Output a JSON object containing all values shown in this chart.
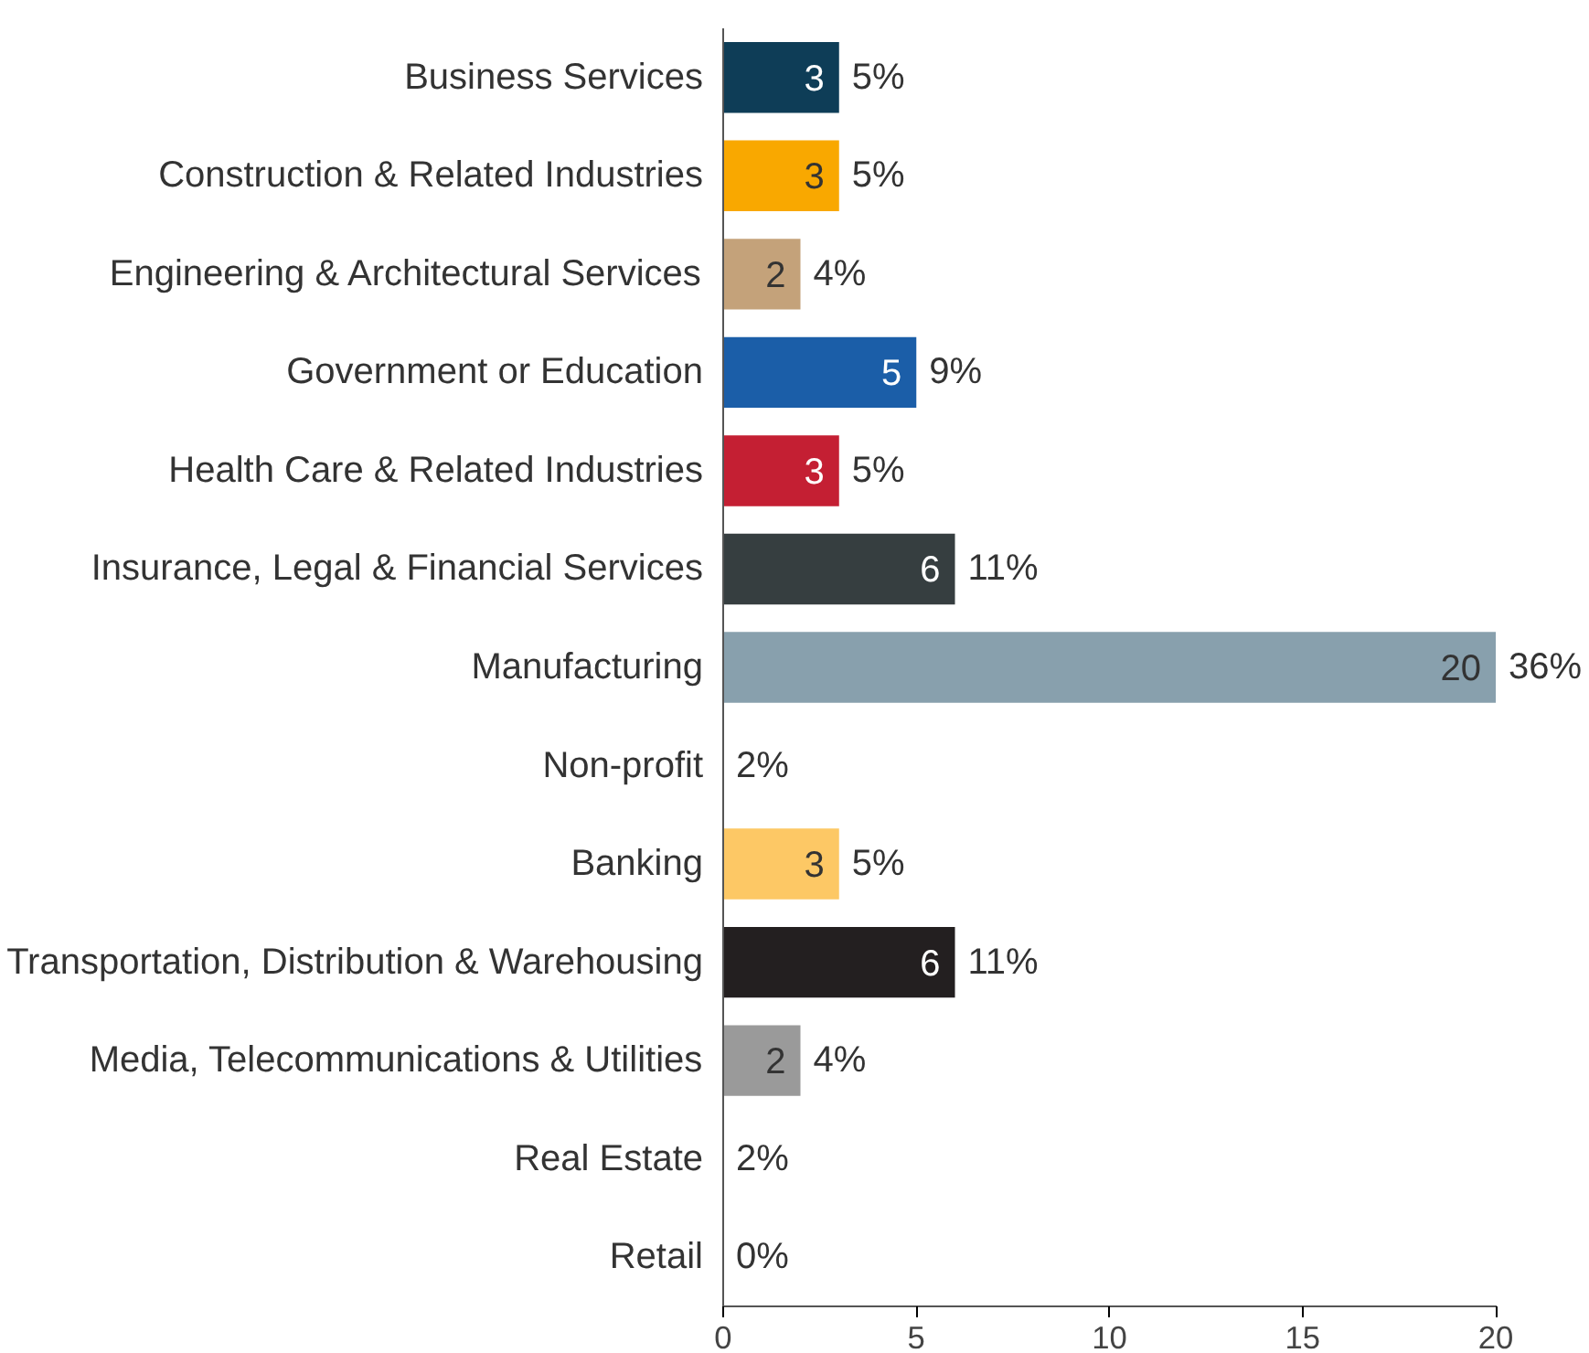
{
  "chart_data": {
    "type": "bar",
    "orientation": "horizontal",
    "categories": [
      "Business Services",
      "Construction & Related Industries",
      "Engineering & Architectural Services",
      "Government or Education",
      "Health Care & Related Industries",
      "Insurance, Legal & Financial Services",
      "Manufacturing",
      "Non-profit",
      "Banking",
      "Transportation, Distribution & Warehousing",
      "Media, Telecommunications & Utilities",
      "Real Estate",
      "Retail"
    ],
    "values": [
      3,
      3,
      2,
      5,
      3,
      6,
      20,
      null,
      3,
      6,
      2,
      null,
      0
    ],
    "colors": [
      "#0e3d57",
      "#f9a800",
      "#c4a27a",
      "#1b5ea8",
      "#c41f33",
      "#363e40",
      "#88a0ad",
      "#ffffff",
      "#fdc865",
      "#231f20",
      "#9a9a9a",
      "#ffffff",
      "#ffffff"
    ],
    "value_labels": [
      "3",
      "3",
      "2",
      "5",
      "3",
      "6",
      "20",
      null,
      "3",
      "6",
      "2",
      null,
      null
    ],
    "annotations": [
      {
        "text": "5%",
        "x": 3,
        "y": "Business Services"
      },
      {
        "text": "5%",
        "x": 3,
        "y": "Construction & Related Industries"
      },
      {
        "text": "4%",
        "x": 2,
        "y": "Engineering & Architectural Services"
      },
      {
        "text": "9%",
        "x": 5,
        "y": "Government or Education"
      },
      {
        "text": "5%",
        "x": 3,
        "y": "Health Care & Related Industries"
      },
      {
        "text": "11%",
        "x": 6,
        "y": "Insurance, Legal & Financial Services"
      },
      {
        "text": "36%",
        "x": 20,
        "y": "Manufacturing"
      },
      "2%",
      {
        "text": "5%",
        "x": 3,
        "y": "Banking"
      },
      {
        "text": "11%",
        "x": 6,
        "y": "Transportation, Distribution & Warehousing"
      },
      {
        "text": "4%",
        "x": 2,
        "y": "Media, Telecommunications & Utilities"
      },
      "2%",
      {
        "text": "0%",
        "x": 0,
        "y": "Retail"
      }
    ],
    "xlim": [
      0,
      20
    ],
    "xticks": [
      0,
      5,
      10,
      15,
      20
    ],
    "grid": false
  }
}
